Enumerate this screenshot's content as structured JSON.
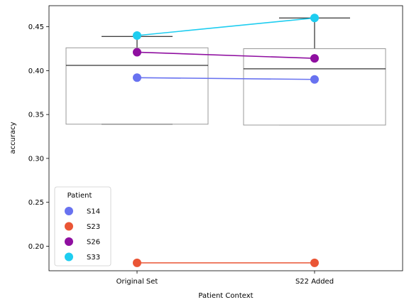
{
  "chart_data": {
    "type": "box-with-lines",
    "title": "",
    "xlabel": "Patient Context",
    "ylabel": "accuracy",
    "categories": [
      "Original Set",
      "S22 Added"
    ],
    "ylim": [
      0.172,
      0.474
    ],
    "yticks": [
      0.2,
      0.25,
      0.3,
      0.35,
      0.4,
      0.45
    ],
    "ytick_labels": [
      "0.20",
      "0.25",
      "0.30",
      "0.35",
      "0.40",
      "0.45"
    ],
    "grid": false,
    "boxes": [
      {
        "category": "Original Set",
        "whisker_low": 0.339,
        "q1": 0.339,
        "median": 0.406,
        "q3": 0.426,
        "whisker_high": 0.439
      },
      {
        "category": "S22 Added",
        "whisker_low": 0.338,
        "q1": 0.338,
        "median": 0.402,
        "q3": 0.425,
        "whisker_high": 0.46
      }
    ],
    "series": [
      {
        "name": "S14",
        "color": "#6872f0",
        "values": [
          0.392,
          0.39
        ]
      },
      {
        "name": "S23",
        "color": "#ea5535",
        "values": [
          0.181,
          0.181
        ]
      },
      {
        "name": "S26",
        "color": "#8f0fa0",
        "values": [
          0.421,
          0.414
        ]
      },
      {
        "name": "S33",
        "color": "#1ecdf0",
        "values": [
          0.44,
          0.46
        ]
      }
    ],
    "legend": {
      "title": "Patient",
      "position": "lower-left"
    }
  }
}
